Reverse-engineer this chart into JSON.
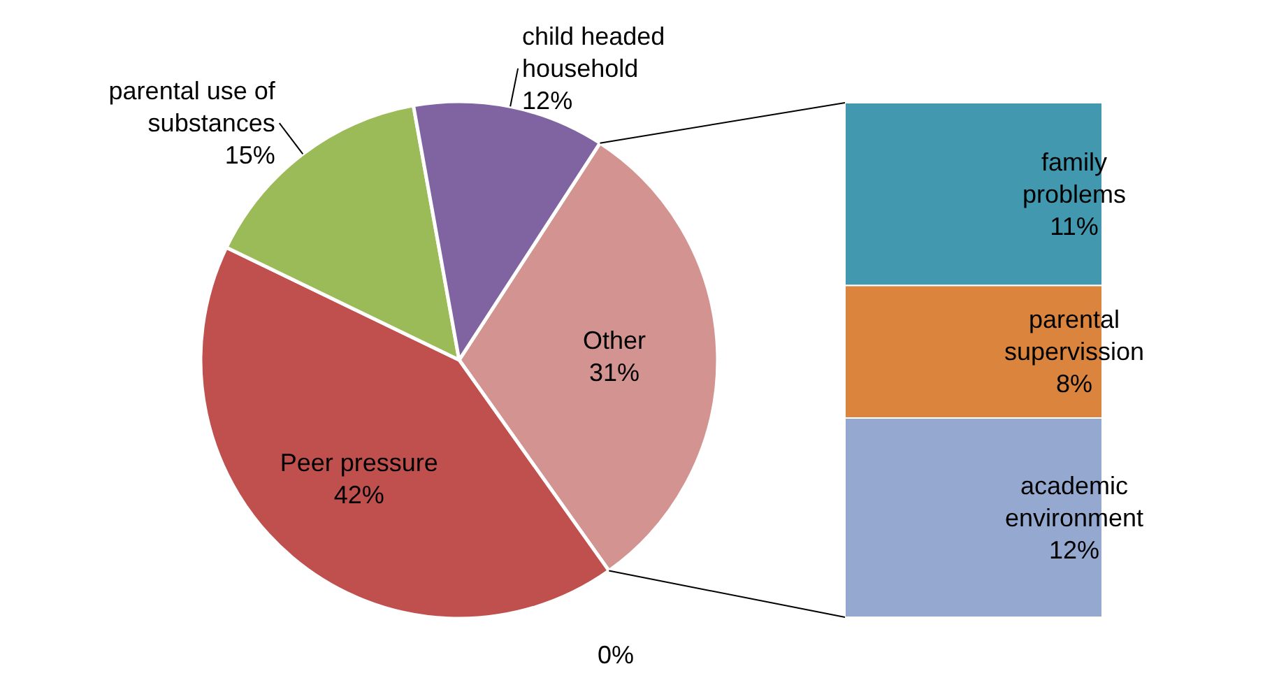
{
  "chart_data": [
    {
      "type": "pie",
      "categories": [
        "Other",
        "Peer pressure",
        "parental use of substances",
        "child headed household"
      ],
      "values": [
        31,
        42,
        15,
        12
      ],
      "colors": [
        "#d39391",
        "#c0504d",
        "#9bbb59",
        "#8064a2"
      ],
      "value_labels": [
        "31%",
        "42%",
        "15%",
        "12%"
      ],
      "annotations": [
        "0%"
      ]
    },
    {
      "type": "bar",
      "stacked": true,
      "categories": [
        null
      ],
      "series": [
        {
          "name": "academic environment",
          "color": "#95a9d0",
          "values": [
            12
          ],
          "value_labels": [
            "12%"
          ]
        },
        {
          "name": "parental supervission",
          "color": "#db843d",
          "values": [
            8
          ],
          "value_labels": [
            "8%"
          ]
        },
        {
          "name": "family problems",
          "color": "#4198af",
          "values": [
            11
          ],
          "value_labels": [
            "11%"
          ]
        }
      ]
    }
  ]
}
